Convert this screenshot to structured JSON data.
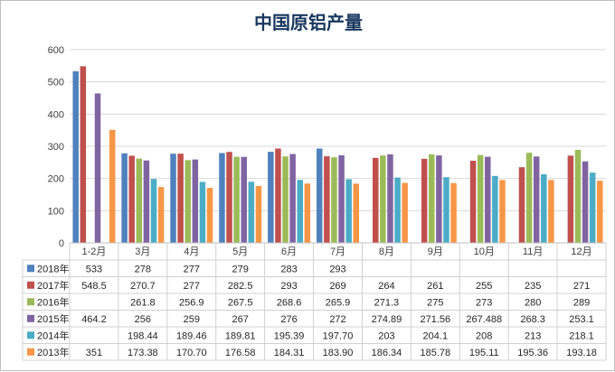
{
  "chart_data": {
    "type": "bar",
    "title": "中国原铝产量",
    "categories": [
      "1-2月",
      "3月",
      "4月",
      "5月",
      "6月",
      "7月",
      "8月",
      "9月",
      "10月",
      "11月",
      "12月"
    ],
    "ylim": [
      0,
      600
    ],
    "yticks": [
      0,
      100,
      200,
      300,
      400,
      500,
      600
    ],
    "grid": true,
    "legend": "bottom-table",
    "series": [
      {
        "name": "2018年",
        "color": "#4f81bd",
        "values": [
          533,
          278,
          277,
          279,
          283,
          293,
          null,
          null,
          null,
          null,
          null
        ],
        "labels": [
          "533",
          "278",
          "277",
          "279",
          "283",
          "293",
          "",
          "",
          "",
          "",
          ""
        ]
      },
      {
        "name": "2017年",
        "color": "#c0504d",
        "values": [
          548.5,
          270.7,
          277,
          282.5,
          293,
          269,
          264,
          261,
          255,
          235,
          271
        ],
        "labels": [
          "548.5",
          "270.7",
          "277",
          "282.5",
          "293",
          "269",
          "264",
          "261",
          "255",
          "235",
          "271"
        ]
      },
      {
        "name": "2016年",
        "color": "#9bbb59",
        "values": [
          null,
          261.8,
          256.9,
          267.5,
          268.6,
          265.9,
          271.3,
          275,
          273,
          280,
          289
        ],
        "labels": [
          "",
          "261.8",
          "256.9",
          "267.5",
          "268.6",
          "265.9",
          "271.3",
          "275",
          "273",
          "280",
          "289"
        ]
      },
      {
        "name": "2015年",
        "color": "#8064a2",
        "values": [
          464.2,
          256,
          259,
          267,
          276,
          272,
          274.89,
          271.56,
          267.488,
          268.3,
          253.1
        ],
        "labels": [
          "464.2",
          "256",
          "259",
          "267",
          "276",
          "272",
          "274.89",
          "271.56",
          "267.488",
          "268.3",
          "253.1"
        ]
      },
      {
        "name": "2014年",
        "color": "#4bacc6",
        "values": [
          null,
          198.44,
          189.46,
          189.81,
          195.39,
          197.7,
          203,
          204.1,
          208,
          213,
          218.1
        ],
        "labels": [
          "",
          "198.44",
          "189.46",
          "189.81",
          "195.39",
          "197.70",
          "203",
          "204.1",
          "208",
          "213",
          "218.1"
        ]
      },
      {
        "name": "2013年",
        "color": "#f79646",
        "values": [
          351,
          173.38,
          170.7,
          176.58,
          184.31,
          183.9,
          186.34,
          185.78,
          195.11,
          195.36,
          193.18
        ],
        "labels": [
          "351",
          "173.38",
          "170.70",
          "176.58",
          "184.31",
          "183.90",
          "186.34",
          "185.78",
          "195.11",
          "195.36",
          "193.18"
        ]
      }
    ]
  }
}
